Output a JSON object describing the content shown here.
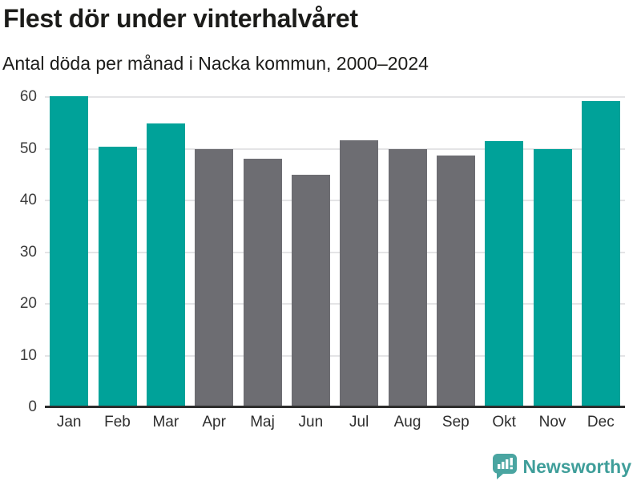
{
  "chart_data": {
    "type": "bar",
    "title": "Flest dör under vinterhalvåret",
    "subtitle": "Antal döda per månad i Nacka kommun, 2000–2024",
    "categories": [
      "Jan",
      "Feb",
      "Mar",
      "Apr",
      "Maj",
      "Jun",
      "Jul",
      "Aug",
      "Sep",
      "Okt",
      "Nov",
      "Dec"
    ],
    "values": [
      60.2,
      50.4,
      54.9,
      49.9,
      48.0,
      45.0,
      51.6,
      49.9,
      48.7,
      51.5,
      49.9,
      59.3
    ],
    "bar_colors": [
      "#00a299",
      "#00a299",
      "#00a299",
      "#6d6d72",
      "#6d6d72",
      "#6d6d72",
      "#6d6d72",
      "#6d6d72",
      "#6d6d72",
      "#00a299",
      "#00a299",
      "#00a299"
    ],
    "xlabel": "",
    "ylabel": "",
    "ylim": [
      0,
      60
    ],
    "yticks": [
      0,
      10,
      20,
      30,
      40,
      50,
      60
    ],
    "grid": "horizontal",
    "legend": "none",
    "colors": {
      "winter_highlight": "#00a299",
      "summer_muted": "#6d6d72",
      "gridline": "#e4e4e6",
      "axis_line": "#2d2d2d"
    }
  },
  "footer": {
    "brand": "Newsworthy",
    "brand_color": "#3f9e9a",
    "logo_icon": "newsworthy-speech-bubble-barchart-icon",
    "logo_fill": "#4aa5a1"
  }
}
